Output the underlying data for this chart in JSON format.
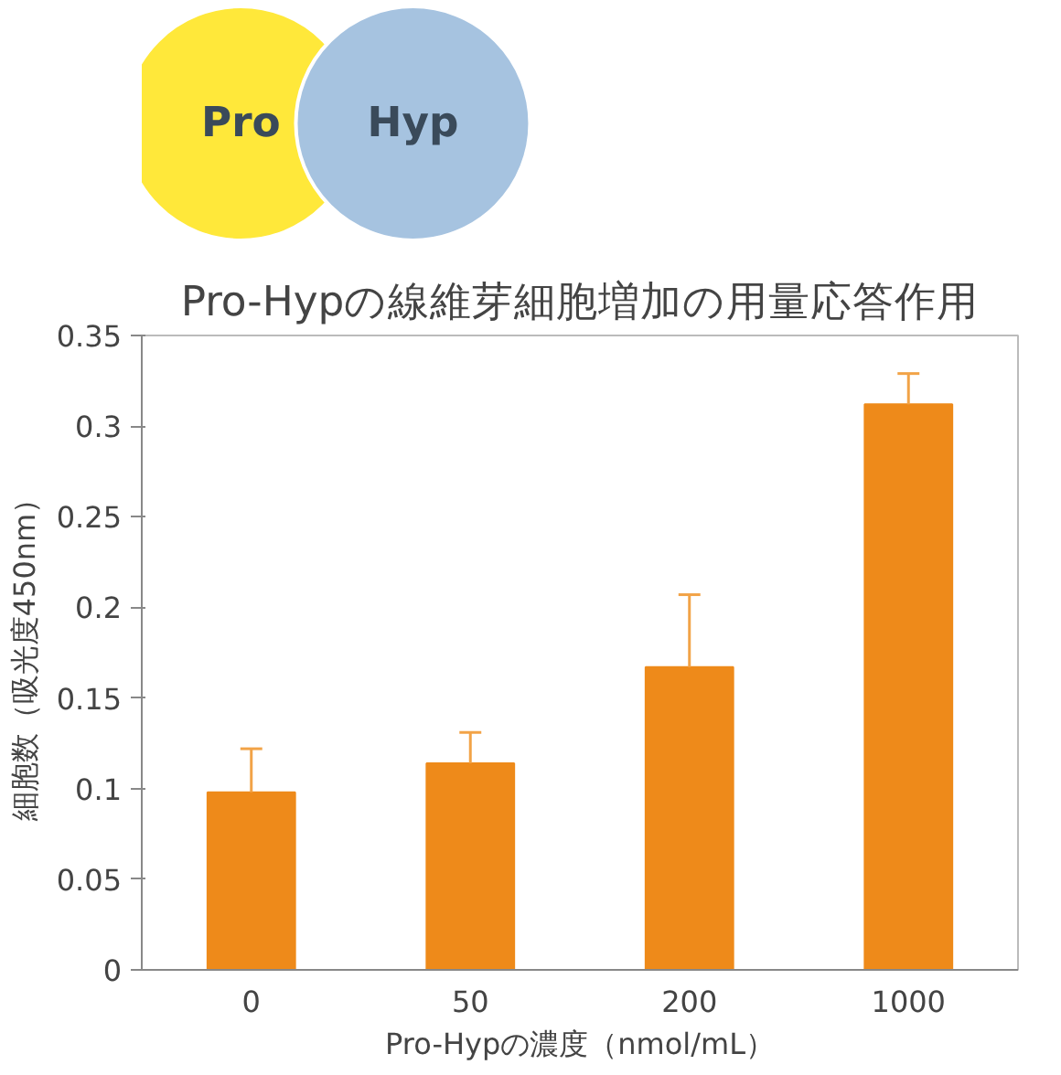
{
  "chart_data": {
    "type": "bar",
    "title": "Pro-Hypの線維芽細胞増加の用量応答作用",
    "categories": [
      "0",
      "50",
      "200",
      "1000"
    ],
    "values": [
      0.098,
      0.114,
      0.167,
      0.312
    ],
    "errors": [
      [
        0.098,
        0.122
      ],
      [
        0.114,
        0.131
      ],
      [
        0.167,
        0.207
      ],
      [
        0.312,
        0.329
      ]
    ],
    "color": "#ee8a1a",
    "xlabel": "Pro-Hypの濃度（nmol/mL）",
    "ylabel": "細胞数（吸光度450nm）",
    "ylim": [
      0,
      0.35
    ],
    "yticks": [
      0,
      0.05,
      0.1,
      0.15,
      0.2,
      0.25,
      0.3,
      0.35
    ],
    "grid": false,
    "annotations": [
      "Pro",
      "Hyp"
    ]
  }
}
